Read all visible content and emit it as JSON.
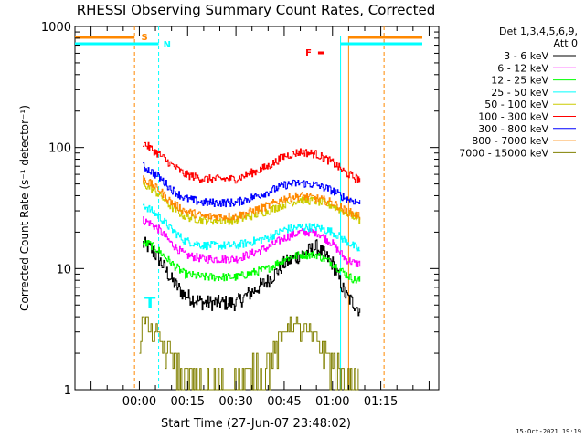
{
  "chart_data": {
    "type": "line",
    "title": "RHESSI Observing Summary Count Rates, Corrected",
    "ylabel": "Corrected Count Rate (s⁻¹ detector⁻¹)",
    "xlabel": "Start Time (27-Jun-07 23:48:02)",
    "x_units": "minutes from 00:00",
    "xlim": [
      -20,
      93
    ],
    "ylim": [
      1,
      1000
    ],
    "yscale": "log",
    "x_ticks": [
      {
        "label": "00:00",
        "x": 0
      },
      {
        "label": "00:15",
        "x": 15
      },
      {
        "label": "00:30",
        "x": 30
      },
      {
        "label": "00:45",
        "x": 45
      },
      {
        "label": "01:00",
        "x": 60
      },
      {
        "label": "01:15",
        "x": 75
      }
    ],
    "y_ticks": [
      {
        "label": "1",
        "y": 1
      },
      {
        "label": "10",
        "y": 10
      },
      {
        "label": "100",
        "y": 100
      },
      {
        "label": "1000",
        "y": 1000
      }
    ],
    "legend": {
      "header_line1": "Det 1,3,4,5,6,9,",
      "header_line2": "Att 0",
      "placement": "right"
    },
    "series": [
      {
        "name": "3 - 6 keV",
        "color": "#000000",
        "x": [
          1,
          3,
          6,
          10,
          14,
          20,
          30,
          40,
          45,
          50,
          55,
          60,
          64,
          67,
          68.5
        ],
        "y": [
          16,
          15,
          12,
          8,
          6,
          5.2,
          5.2,
          8,
          11,
          13,
          15,
          11,
          6,
          5,
          4.5
        ]
      },
      {
        "name": "6 - 12 keV",
        "color": "#ff00ff",
        "x": [
          1,
          3,
          6,
          10,
          14,
          20,
          30,
          40,
          45,
          50,
          55,
          60,
          64,
          67,
          68.5
        ],
        "y": [
          25,
          24,
          21,
          16,
          13,
          12,
          12,
          15,
          18,
          20,
          20,
          16,
          12,
          11,
          11
        ]
      },
      {
        "name": "12 - 25 keV",
        "color": "#00ff00",
        "x": [
          1,
          3,
          6,
          10,
          14,
          20,
          30,
          40,
          45,
          50,
          55,
          60,
          64,
          67,
          68.5
        ],
        "y": [
          16,
          16,
          14,
          11,
          9,
          8.5,
          8.5,
          10,
          12,
          13,
          13,
          11,
          9,
          8,
          8
        ]
      },
      {
        "name": "25 - 50 keV",
        "color": "#00ffff",
        "x": [
          1,
          3,
          6,
          10,
          14,
          20,
          30,
          40,
          45,
          50,
          55,
          60,
          64,
          67,
          68.5
        ],
        "y": [
          34,
          31,
          27,
          21,
          17,
          15.5,
          15.5,
          18,
          21,
          22,
          22,
          20,
          17,
          15,
          14
        ]
      },
      {
        "name": "50 - 100 keV",
        "color": "#cccc00",
        "x": [
          1,
          3,
          6,
          10,
          14,
          20,
          30,
          40,
          45,
          50,
          55,
          60,
          64,
          67,
          68.5
        ],
        "y": [
          50,
          47,
          41,
          32,
          27,
          25,
          25,
          30,
          34,
          37,
          36,
          33,
          29,
          27,
          25
        ]
      },
      {
        "name": "100 - 300 keV",
        "color": "#ff0000",
        "x": [
          1,
          3,
          6,
          10,
          14,
          20,
          30,
          40,
          45,
          50,
          55,
          60,
          64,
          67,
          68.5
        ],
        "y": [
          110,
          100,
          88,
          72,
          60,
          55,
          55,
          70,
          85,
          92,
          88,
          75,
          62,
          56,
          55
        ]
      },
      {
        "name": "300 - 800 keV",
        "color": "#0000ff",
        "x": [
          1,
          3,
          6,
          10,
          14,
          20,
          30,
          40,
          45,
          50,
          55,
          60,
          64,
          67,
          68.5
        ],
        "y": [
          70,
          65,
          57,
          45,
          38,
          35,
          35,
          43,
          49,
          51,
          49,
          44,
          38,
          36,
          35
        ]
      },
      {
        "name": "800 - 7000 keV",
        "color": "#ff8800",
        "x": [
          1,
          3,
          6,
          10,
          14,
          20,
          30,
          40,
          45,
          50,
          55,
          60,
          64,
          67,
          68.5
        ],
        "y": [
          56,
          51,
          45,
          35,
          30,
          27,
          27,
          33,
          38,
          40,
          38,
          35,
          30,
          28,
          27
        ]
      },
      {
        "name": "7000 - 15000 keV",
        "color": "#808000",
        "x": [
          0,
          1,
          2,
          3,
          4,
          5,
          6,
          7,
          8,
          10,
          12,
          14,
          16,
          18,
          25,
          30,
          35,
          40,
          44,
          46,
          48,
          50,
          52,
          55,
          58,
          60,
          62,
          64,
          66,
          68
        ],
        "y": [
          2.5,
          4,
          4,
          3,
          3,
          3,
          2.5,
          2.5,
          2,
          2,
          1.5,
          1,
          1,
          1,
          1,
          1,
          1.3,
          1.7,
          2.5,
          3.5,
          3.5,
          3.2,
          3,
          2.5,
          2,
          1.5,
          1.2,
          1,
          1,
          1
        ]
      }
    ],
    "annotations": [
      {
        "text": "S",
        "color": "#ff8800",
        "x": 0
      },
      {
        "text": "N",
        "color": "#00ffff",
        "x": 6
      },
      {
        "text": "F",
        "color": "#ff0000",
        "x": 51
      },
      {
        "text": "T",
        "color": "#00ffff",
        "x": 1
      }
    ],
    "timestamp": "15-Oct-2021 19:19"
  }
}
